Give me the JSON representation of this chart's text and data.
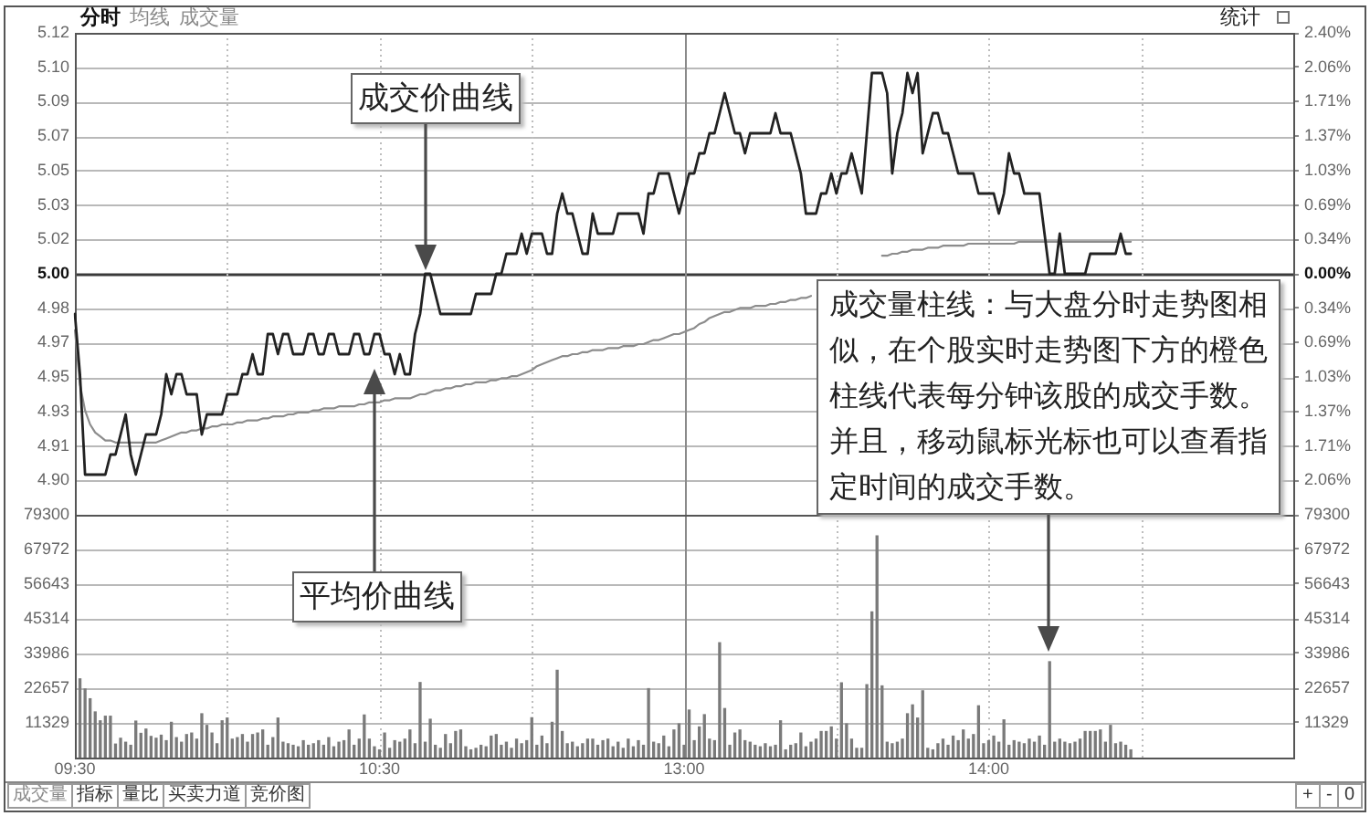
{
  "chart_data": [
    {
      "type": "line",
      "categories": [
        null,
        null,
        null,
        null,
        null,
        null,
        null,
        null,
        null,
        null,
        null,
        null,
        null,
        null,
        null,
        null,
        null,
        null,
        null,
        null,
        null,
        null,
        null,
        null,
        null,
        null,
        null,
        null,
        null,
        null,
        null,
        null,
        null,
        null,
        null,
        null,
        null,
        null,
        null,
        null,
        null,
        null,
        null,
        null,
        null,
        null,
        null,
        null,
        null,
        null,
        null,
        null,
        null,
        null,
        null,
        null,
        null,
        null,
        null,
        null,
        null,
        null,
        null,
        null,
        null,
        null,
        null,
        null,
        null,
        null,
        null,
        null,
        null,
        null,
        null,
        null,
        null,
        null,
        null,
        null,
        null,
        null,
        null,
        null,
        null,
        null,
        null,
        null,
        null,
        null,
        null,
        null,
        null,
        null,
        null,
        null,
        null,
        null,
        null,
        null,
        null,
        null,
        null,
        null,
        null,
        null,
        null,
        null,
        null,
        null,
        null,
        null,
        null,
        null,
        null,
        null,
        null,
        null,
        null,
        null,
        null,
        null,
        null,
        null,
        null,
        null,
        null,
        null,
        null,
        null,
        null,
        null,
        null,
        null,
        null,
        null,
        null,
        null,
        null,
        null,
        null,
        null,
        null,
        null,
        null,
        null,
        null,
        null,
        null,
        null,
        null,
        null,
        null,
        null,
        null,
        null,
        null,
        null,
        null,
        null,
        null,
        null,
        null,
        null,
        null,
        null,
        null,
        null,
        null,
        null,
        null,
        null,
        null,
        null,
        null,
        null,
        null,
        null,
        null,
        null,
        null,
        null,
        null,
        null,
        null,
        null,
        null,
        null,
        null,
        null,
        null,
        null,
        null,
        null,
        null,
        null,
        null,
        null,
        null,
        null,
        null,
        null,
        null,
        null,
        null,
        null,
        null,
        null,
        null,
        null,
        null,
        null,
        null,
        null,
        null,
        null,
        null,
        null,
        null,
        null,
        null,
        null,
        null,
        null,
        null,
        null,
        null,
        null,
        null,
        null,
        null,
        null,
        null,
        null,
        null,
        null,
        null,
        null,
        null,
        null,
        null
      ],
      "series": [
        {
          "values": [
            4.98,
            4.95,
            4.9,
            4.9,
            4.9,
            4.9,
            4.9,
            4.91,
            4.91,
            4.92,
            4.93,
            4.91,
            4.9,
            4.91,
            4.92,
            4.92,
            4.92,
            4.93,
            4.95,
            4.94,
            4.95,
            4.95,
            4.94,
            4.94,
            4.94,
            4.92,
            4.93,
            4.93,
            4.93,
            4.93,
            4.94,
            4.94,
            4.94,
            4.95,
            4.95,
            4.96,
            4.95,
            4.95,
            4.97,
            4.97,
            4.96,
            4.97,
            4.97,
            4.96,
            4.96,
            4.96,
            4.97,
            4.97,
            4.96,
            4.96,
            4.97,
            4.97,
            4.96,
            4.96,
            4.96,
            4.97,
            4.97,
            4.96,
            4.96,
            4.97,
            4.97,
            4.96,
            4.96,
            4.95,
            4.96,
            4.95,
            4.95,
            4.97,
            4.98,
            5.0,
            5.0,
            4.99,
            4.98,
            4.98,
            4.98,
            4.98,
            4.98,
            4.98,
            4.98,
            4.99,
            4.99,
            4.99,
            4.99,
            5.0,
            5.0,
            5.01,
            5.01,
            5.01,
            5.02,
            5.01,
            5.02,
            5.02,
            5.02,
            5.01,
            5.01,
            5.03,
            5.04,
            5.03,
            5.03,
            5.02,
            5.01,
            5.01,
            5.03,
            5.02,
            5.02,
            5.02,
            5.02,
            5.03,
            5.03,
            5.03,
            5.03,
            5.03,
            5.02,
            5.04,
            5.04,
            5.05,
            5.05,
            5.05,
            5.04,
            5.03,
            5.04,
            5.05,
            5.05,
            5.06,
            5.06,
            5.07,
            5.07,
            5.08,
            5.09,
            5.08,
            5.07,
            5.07,
            5.06,
            5.07,
            5.07,
            5.07,
            5.07,
            5.07,
            5.08,
            5.07,
            5.07,
            5.07,
            5.06,
            5.05,
            5.03,
            5.03,
            5.03,
            5.04,
            5.04,
            5.05,
            5.04,
            5.05,
            5.05,
            5.06,
            5.05,
            5.04,
            5.07,
            5.1,
            5.1,
            5.1,
            5.09,
            5.05,
            5.07,
            5.08,
            5.1,
            5.09,
            5.1,
            5.06,
            5.07,
            5.08,
            5.08,
            5.07,
            5.07,
            5.06,
            5.05,
            5.05,
            5.05,
            5.05,
            5.04,
            5.04,
            5.04,
            5.04,
            5.03,
            5.04,
            5.06,
            5.05,
            5.05,
            5.04,
            5.04,
            5.04,
            5.04,
            5.02,
            5.0,
            5.0,
            5.02,
            5.0,
            5.0,
            5.0,
            5.0,
            5.0,
            5.01,
            5.01,
            5.01,
            5.01,
            5.01,
            5.01,
            5.02,
            5.01,
            5.01,
            null,
            null,
            null,
            null,
            null,
            null,
            null,
            null,
            null,
            null,
            null,
            null,
            null,
            null,
            null,
            null,
            null,
            null,
            null,
            null,
            null,
            null,
            null,
            null,
            null,
            null,
            null,
            null,
            null,
            null,
            null,
            null
          ],
          "color": "#222222"
        },
        {
          "values": [
            4.972,
            4.945,
            4.932,
            4.925,
            4.921,
            4.919,
            4.917,
            4.917,
            4.916,
            4.916,
            4.916,
            4.916,
            4.916,
            4.916,
            4.916,
            4.916,
            4.916,
            4.917,
            4.918,
            4.919,
            4.92,
            4.921,
            4.921,
            4.922,
            4.922,
            4.923,
            4.923,
            4.924,
            4.924,
            4.925,
            4.925,
            4.925,
            4.926,
            4.926,
            4.927,
            4.927,
            4.927,
            4.928,
            4.928,
            4.929,
            4.929,
            4.929,
            4.93,
            4.93,
            4.931,
            4.931,
            4.931,
            4.932,
            4.932,
            4.933,
            4.933,
            4.933,
            4.934,
            4.934,
            4.934,
            4.934,
            4.935,
            4.935,
            4.936,
            4.936,
            4.936,
            4.937,
            4.937,
            4.938,
            4.938,
            4.938,
            4.938,
            4.939,
            4.94,
            4.94,
            4.941,
            4.942,
            4.942,
            4.943,
            4.943,
            4.944,
            4.944,
            4.945,
            4.945,
            4.946,
            4.946,
            4.946,
            4.947,
            4.947,
            4.948,
            4.948,
            4.949,
            4.949,
            4.95,
            4.951,
            4.952,
            4.954,
            4.955,
            4.956,
            4.957,
            4.958,
            4.959,
            4.959,
            4.96,
            4.96,
            4.961,
            4.961,
            4.962,
            4.962,
            4.962,
            4.963,
            4.963,
            4.963,
            4.964,
            4.964,
            4.964,
            4.965,
            4.965,
            4.966,
            4.967,
            4.967,
            4.968,
            4.969,
            4.97,
            4.97,
            4.971,
            4.972,
            4.973,
            4.975,
            4.976,
            4.978,
            4.979,
            4.98,
            4.981,
            4.981,
            4.982,
            4.983,
            4.983,
            4.983,
            4.984,
            4.984,
            4.984,
            4.985,
            4.985,
            4.986,
            4.986,
            4.987,
            4.987,
            4.988,
            4.988,
            4.989,
            null,
            null,
            null,
            null,
            null,
            null,
            null,
            null,
            null,
            null,
            null,
            null,
            null,
            5.009,
            5.009,
            5.01,
            5.01,
            5.011,
            5.011,
            5.012,
            5.012,
            5.012,
            5.013,
            5.013,
            5.013,
            5.014,
            5.014,
            5.014,
            5.014,
            5.014,
            5.015,
            5.015,
            5.015,
            5.015,
            5.015,
            5.015,
            5.015,
            5.015,
            5.015,
            5.015,
            5.016,
            5.016,
            5.016,
            5.016,
            5.016,
            5.016,
            5.016,
            5.016,
            5.016,
            5.016,
            5.016,
            5.016,
            5.016,
            5.016,
            5.016,
            5.016,
            5.016,
            5.016,
            5.016,
            5.016,
            5.016,
            5.016,
            5.016,
            null,
            null,
            null,
            null,
            null,
            null,
            null,
            null,
            null,
            null,
            null,
            null,
            null,
            null,
            null,
            null,
            null,
            null,
            null,
            null,
            null,
            null,
            null,
            null,
            null,
            null,
            null,
            null,
            null,
            null,
            null,
            null
          ],
          "color": "#8c8c8c"
        }
      ],
      "ylim": [
        4.88,
        5.12
      ],
      "yticks": [
        {
          "value": 4.8971,
          "label": "4.90"
        },
        {
          "value": 4.9143,
          "label": "4.91"
        },
        {
          "value": 4.9314,
          "label": "4.93"
        },
        {
          "value": 4.9486,
          "label": "4.95"
        },
        {
          "value": 4.9657,
          "label": "4.97"
        },
        {
          "value": 4.9829,
          "label": "4.98"
        },
        {
          "value": 5,
          "label": "5.00"
        },
        {
          "value": 5.0171,
          "label": "5.02"
        },
        {
          "value": 5.0343,
          "label": "5.03"
        },
        {
          "value": 5.0514,
          "label": "5.05"
        },
        {
          "value": 5.0686,
          "label": "5.07"
        },
        {
          "value": 5.0857,
          "label": "5.09"
        },
        {
          "value": 5.1029,
          "label": "5.10"
        },
        5.12
      ],
      "y2lim": [
        -2.4,
        2.4
      ],
      "y2ticks": [
        {
          "value": -2.0571,
          "label": "2.06%"
        },
        {
          "value": -1.7143,
          "label": "1.71%"
        },
        {
          "value": -1.3714,
          "label": "1.37%"
        },
        {
          "value": -1.0286,
          "label": "1.03%"
        },
        {
          "value": -0.6857,
          "label": "0.69%"
        },
        {
          "value": -0.3429,
          "label": "0.34%"
        },
        {
          "value": 0,
          "label": "0.00%"
        },
        {
          "value": 0.3429,
          "label": "0.34%"
        },
        {
          "value": 0.6857,
          "label": "0.69%"
        },
        {
          "value": 1.0286,
          "label": "1.03%"
        },
        {
          "value": 1.3714,
          "label": "1.37%"
        },
        {
          "value": 1.7143,
          "label": "1.71%"
        },
        {
          "value": 2.0571,
          "label": "2.06%"
        },
        {
          "value": 2.4,
          "label": "2.40%"
        }
      ],
      "grid": true,
      "annotations": [
        "成交价曲线",
        "平均价曲线",
        "分时",
        "均线",
        "成交量",
        "统计"
      ]
    },
    {
      "type": "bar",
      "categories": [
        "09:30",
        null,
        null,
        null,
        null,
        null,
        null,
        null,
        null,
        null,
        null,
        null,
        null,
        null,
        null,
        null,
        null,
        null,
        null,
        null,
        null,
        null,
        null,
        null,
        null,
        null,
        null,
        null,
        null,
        null,
        null,
        null,
        null,
        null,
        null,
        null,
        null,
        null,
        null,
        null,
        null,
        null,
        null,
        null,
        null,
        null,
        null,
        null,
        null,
        null,
        null,
        null,
        null,
        null,
        null,
        null,
        null,
        null,
        null,
        null,
        "10:30",
        null,
        null,
        null,
        null,
        null,
        null,
        null,
        null,
        null,
        null,
        null,
        null,
        null,
        null,
        null,
        null,
        null,
        null,
        null,
        null,
        null,
        null,
        null,
        null,
        null,
        null,
        null,
        null,
        null,
        null,
        null,
        null,
        null,
        null,
        null,
        null,
        null,
        null,
        null,
        null,
        null,
        null,
        null,
        null,
        null,
        null,
        null,
        null,
        null,
        null,
        null,
        null,
        null,
        null,
        null,
        null,
        null,
        null,
        null,
        "13:00",
        null,
        null,
        null,
        null,
        null,
        null,
        null,
        null,
        null,
        null,
        null,
        null,
        null,
        null,
        null,
        null,
        null,
        null,
        null,
        null,
        null,
        null,
        null,
        null,
        null,
        null,
        null,
        null,
        null,
        null,
        null,
        null,
        null,
        null,
        null,
        null,
        null,
        null,
        null,
        null,
        null,
        null,
        null,
        null,
        null,
        null,
        null,
        null,
        null,
        null,
        null,
        null,
        null,
        null,
        null,
        null,
        null,
        null,
        null,
        "14:00",
        null,
        null,
        null,
        null,
        null,
        null,
        null,
        null,
        null,
        null,
        null,
        null,
        null,
        null,
        null,
        null,
        null,
        null,
        null,
        null,
        null,
        null,
        null,
        null,
        null,
        null,
        null,
        null,
        null,
        null,
        null,
        null,
        null,
        null,
        null,
        null,
        null,
        null,
        null,
        null,
        null,
        null,
        null,
        null,
        null,
        null,
        null,
        null,
        null,
        null,
        null,
        null,
        null,
        null,
        null,
        null,
        null,
        null,
        null,
        null
      ],
      "values": [
        null,
        25700,
        22400,
        19200,
        14900,
        12000,
        13500,
        13500,
        4400,
        6300,
        5000,
        4000,
        11900,
        7900,
        9300,
        6900,
        6300,
        7300,
        5500,
        11500,
        6500,
        5000,
        7500,
        8000,
        6000,
        14300,
        10500,
        8000,
        4500,
        12000,
        12900,
        6000,
        6500,
        7500,
        5000,
        7500,
        8000,
        9000,
        4000,
        6500,
        12900,
        5000,
        4500,
        4000,
        3500,
        5500,
        4000,
        4500,
        5500,
        4000,
        6500,
        3500,
        5000,
        5500,
        9000,
        4000,
        6000,
        13900,
        6000,
        3500,
        2500,
        8000,
        3000,
        5500,
        5000,
        6000,
        9000,
        4500,
        24500,
        5000,
        12500,
        4000,
        3000,
        7500,
        4500,
        8500,
        9000,
        3500,
        2500,
        3000,
        4000,
        3500,
        7000,
        7500,
        4000,
        5000,
        3000,
        6000,
        4500,
        5500,
        13000,
        4000,
        7000,
        4500,
        11500,
        28500,
        8500,
        4500,
        5000,
        3500,
        4500,
        6000,
        6000,
        4000,
        5500,
        6000,
        3500,
        5000,
        3000,
        6000,
        3500,
        5500,
        4000,
        22500,
        5000,
        4500,
        7000,
        3500,
        9000,
        11000,
        4000,
        15500,
        5500,
        10000,
        14000,
        6000,
        5500,
        37500,
        16000,
        4000,
        8000,
        9000,
        5500,
        5000,
        4000,
        3500,
        4500,
        3500,
        4000,
        12000,
        2500,
        4000,
        4500,
        8000,
        3500,
        5000,
        6000,
        8500,
        8500,
        10000,
        6000,
        24400,
        11000,
        6000,
        3000,
        3000,
        23800,
        47600,
        72400,
        23400,
        5000,
        4500,
        5000,
        6000,
        14300,
        17200,
        12900,
        21800,
        3000,
        2500,
        4500,
        6000,
        4000,
        7000,
        5500,
        9000,
        6000,
        7500,
        16900,
        4500,
        5500,
        7000,
        5000,
        12300,
        4000,
        5500,
        5000,
        4500,
        6000,
        5000,
        7000,
        4000,
        31300,
        5000,
        6000,
        5000,
        4500,
        5000,
        6000,
        8500,
        8500,
        8500,
        9000,
        5000,
        10500,
        4500,
        5000,
        4000,
        2500,
        null,
        null,
        null,
        null,
        null,
        null,
        null,
        null,
        null,
        null,
        null,
        null,
        null,
        null,
        null,
        null,
        null,
        null,
        null,
        null,
        null,
        null,
        null,
        null,
        null,
        null,
        null,
        null,
        null,
        null,
        null,
        null
      ],
      "color": "#7a7a7a",
      "ylim": [
        0,
        79300
      ],
      "yticks": [
        11329,
        22657,
        33986,
        45314,
        56643,
        67972,
        79300
      ],
      "y2lim": [
        0,
        79300
      ],
      "y2ticks": [
        11329,
        22657,
        33986,
        45314,
        56643,
        67972,
        79300
      ],
      "grid": true,
      "annotations": [
        "成交量柱线：与大盘分时走势图相似，在个股实时走势图下方的橙色柱线代表每分钟该股的成交手数。并且，移动鼠标光标也可以查看指定时间的成交手数。",
        "成交量",
        "指标",
        "量比",
        "买卖力道",
        "竞价图",
        "+",
        "-",
        "0"
      ]
    }
  ]
}
